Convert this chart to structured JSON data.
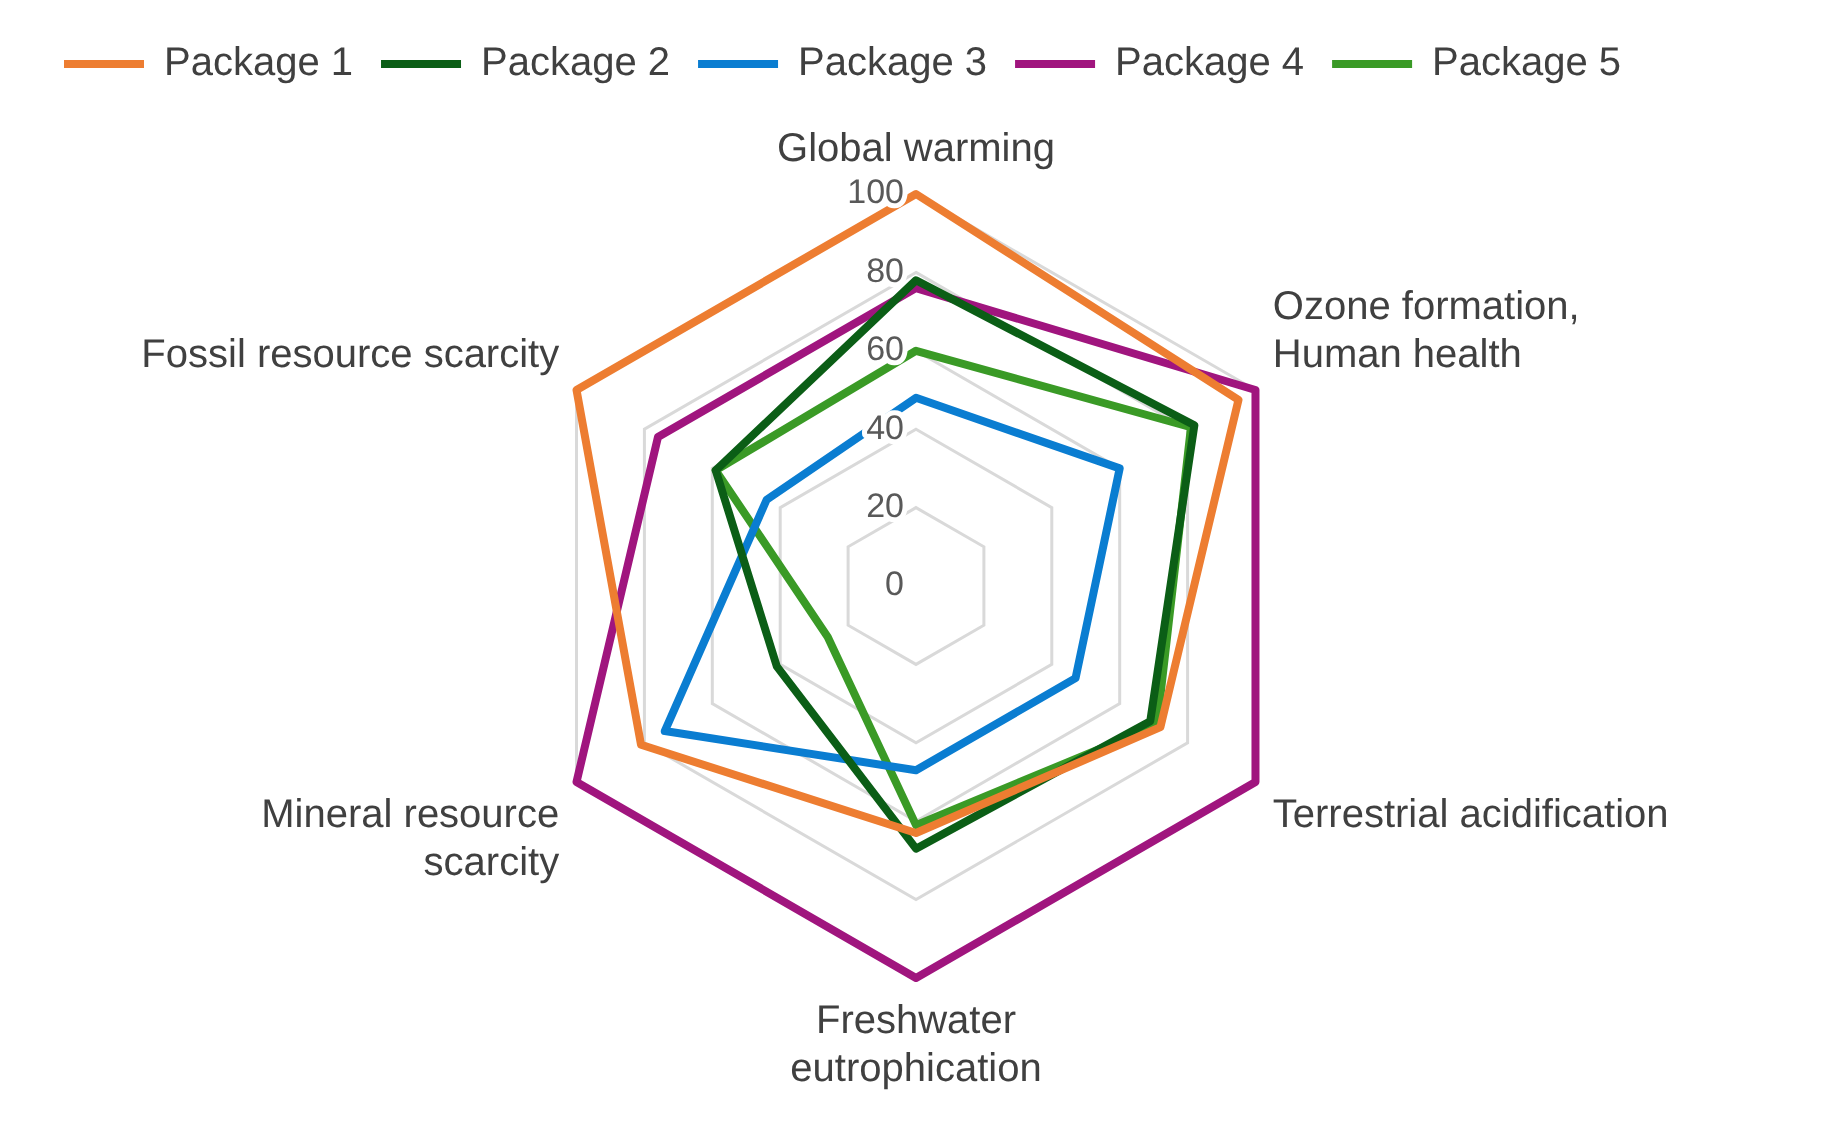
{
  "chart_data": {
    "type": "radar",
    "categories": [
      "Global warming",
      "Ozone formation,\nHuman health",
      "Terrestrial acidification",
      "Freshwater\neutrophication",
      "Mineral resource\nscarcity",
      "Fossil resource scarcity"
    ],
    "series": [
      {
        "name": "Package 1",
        "color": "#ed7d31",
        "values": [
          100,
          95,
          72,
          63,
          81,
          100
        ]
      },
      {
        "name": "Package 2",
        "color": "#0b5e16",
        "values": [
          78,
          82,
          69,
          67,
          41,
          59
        ]
      },
      {
        "name": "Package 3",
        "color": "#0a7dd1",
        "values": [
          48,
          60,
          47,
          47,
          74,
          44
        ]
      },
      {
        "name": "Package 4",
        "color": "#a0157e",
        "values": [
          76,
          100,
          100,
          100,
          100,
          76
        ]
      },
      {
        "name": "Package 5",
        "color": "#3a9a26",
        "values": [
          60,
          81,
          71,
          61,
          26,
          59
        ]
      }
    ],
    "ylim": [
      0,
      100
    ],
    "yticks": [
      0,
      20,
      40,
      60,
      80,
      100
    ],
    "grid": true,
    "legend": "top",
    "marker": "none",
    "line_style": "solid"
  }
}
